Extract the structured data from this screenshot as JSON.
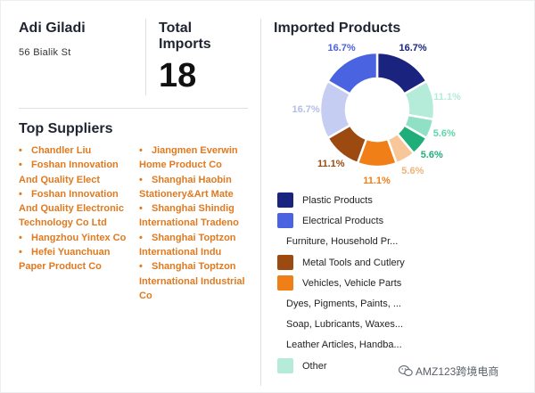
{
  "customer": {
    "name": "Adi Giladi",
    "address": "56 Bialik St"
  },
  "total_imports": {
    "label": "Total Imports",
    "value": "18"
  },
  "suppliers": {
    "title": "Top Suppliers",
    "column1": [
      "Chandler Liu",
      "Foshan Innovation And Quality Elect",
      "Foshan Innovation And Quality Electronic Technology Co Ltd",
      "Hangzhou Yintex Co",
      "Hefei Yuanchuan Paper Product Co"
    ],
    "column2": [
      "Jiangmen Everwin Home Product Co",
      "Shanghai Haobin Stationery&Art Mate",
      "Shanghai Shindig International Tradeno",
      "Shanghai Toptzon International Indu",
      "Shanghai Toptzon International Industrial Co"
    ],
    "bullet": "•",
    "color": "#e07a20"
  },
  "imported_products": {
    "title": "Imported Products",
    "legend": [
      {
        "label": "Plastic Products",
        "color": "#1a237e",
        "swatch": true
      },
      {
        "label": "Electrical Products",
        "color": "#4a63e0",
        "swatch": true
      },
      {
        "label": "Furniture, Household Pr...",
        "color": "#c5cdf2",
        "swatch": false
      },
      {
        "label": "Metal Tools and Cutlery",
        "color": "#9c4a10",
        "swatch": true
      },
      {
        "label": "Vehicles, Vehicle Parts",
        "color": "#ef7f16",
        "swatch": true
      },
      {
        "label": "Dyes, Pigments, Paints, ...",
        "color": "#f7c79a",
        "swatch": false
      },
      {
        "label": "Soap, Lubricants, Waxes...",
        "color": "#1fae7a",
        "swatch": false
      },
      {
        "label": "Leather Articles, Handba...",
        "color": "#8fe0c4",
        "swatch": false
      },
      {
        "label": "Other",
        "color": "#b4ecd9",
        "swatch": true
      }
    ]
  },
  "chart_data": {
    "type": "pie",
    "title": "Imported Products",
    "donut": true,
    "categories": [
      "Plastic Products",
      "Other",
      "Leather Articles, Handba...",
      "Soap, Lubricants, Waxes...",
      "Dyes, Pigments, Paints, ...",
      "Vehicles, Vehicle Parts",
      "Metal Tools and Cutlery",
      "Furniture, Household Pr...",
      "Electrical Products"
    ],
    "values": [
      16.7,
      11.1,
      5.6,
      5.6,
      5.6,
      11.1,
      11.1,
      16.7,
      16.7
    ],
    "labels": [
      "16.7%",
      "11.1%",
      "5.6%",
      "5.6%",
      "5.6%",
      "11.1%",
      "11.1%",
      "16.7%",
      "16.7%"
    ],
    "colors": [
      "#1a237e",
      "#b4ecd9",
      "#8fe0c4",
      "#1fae7a",
      "#f7c79a",
      "#ef7f16",
      "#9c4a10",
      "#c5cdf2",
      "#4a63e0"
    ],
    "label_colors": [
      "#1a237e",
      "#b4ecd9",
      "#5ed6a8",
      "#1fae7a",
      "#f0b27a",
      "#ef7f16",
      "#9c4a10",
      "#b3bde9",
      "#4a63e0"
    ]
  },
  "watermark": {
    "text": "AMZ123跨境电商"
  }
}
